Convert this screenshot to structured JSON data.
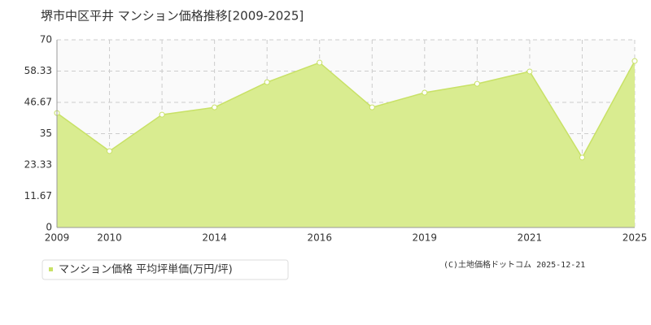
{
  "chart_data": {
    "type": "area",
    "title": "堺市中区平井 マンション価格推移[2009-2025]",
    "categories": [
      "2009",
      "2010",
      null,
      "2014",
      null,
      "2016",
      null,
      "2019",
      null,
      "2021",
      null,
      "2025"
    ],
    "series": [
      {
        "name": "マンション価格 平均坪単価(万円/坪)",
        "color": "#c8e166",
        "fill": "#d9ec90",
        "values": [
          42.7,
          28.5,
          42.1,
          44.8,
          54.2,
          61.5,
          44.8,
          50.3,
          53.6,
          58.2,
          26.1,
          62.1
        ]
      }
    ],
    "ylim": [
      0,
      70
    ],
    "yticks": [
      0,
      11.67,
      23.33,
      35,
      46.67,
      58.33,
      70
    ],
    "grid": true,
    "footer": "(C)土地価格ドットコム 2025-12-21"
  }
}
